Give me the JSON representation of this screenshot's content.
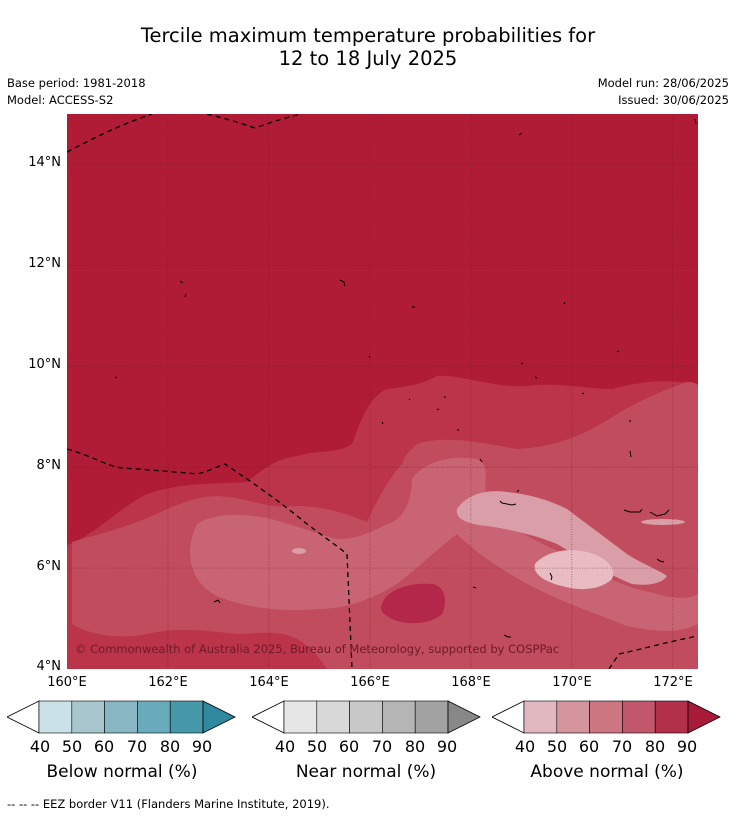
{
  "title": {
    "line1": "Tercile maximum temperature probabilities for",
    "line2": "12 to 18 July 2025"
  },
  "meta": {
    "base_period": "Base period: 1981-2018",
    "model": "Model: ACCESS-S2",
    "model_run": "Model run: 28/06/2025",
    "issued": "Issued: 30/06/2025"
  },
  "map": {
    "lon_range": [
      160,
      172.5
    ],
    "lat_range": [
      4,
      15
    ],
    "background_color": "#b01c36",
    "gridlines": true,
    "copyright": "© Commonwealth of Australia 2025, Bureau of Meteorology, supported by COSPPac",
    "y_ticks": [
      {
        "label": "4°N",
        "lat": 4
      },
      {
        "label": "6°N",
        "lat": 6
      },
      {
        "label": "8°N",
        "lat": 8
      },
      {
        "label": "10°N",
        "lat": 10
      },
      {
        "label": "12°N",
        "lat": 12
      },
      {
        "label": "14°N",
        "lat": 14
      }
    ],
    "x_ticks": [
      {
        "label": "160°E",
        "lon": 160
      },
      {
        "label": "162°E",
        "lon": 162
      },
      {
        "label": "164°E",
        "lon": 164
      },
      {
        "label": "166°E",
        "lon": 166
      },
      {
        "label": "168°E",
        "lon": 168
      },
      {
        "label": "170°E",
        "lon": 170
      },
      {
        "label": "172°E",
        "lon": 172
      }
    ]
  },
  "colorbars": [
    {
      "name": "below",
      "title": "Below normal (%)",
      "colors": [
        "#c9e1e7",
        "#a7c6cd",
        "#88b7c3",
        "#6aabbb",
        "#4798a8",
        "#2f8aa0"
      ],
      "labels": [
        "40",
        "50",
        "60",
        "70",
        "80",
        "90"
      ]
    },
    {
      "name": "near",
      "title": "Near normal (%)",
      "colors": [
        "#e6e6e6",
        "#d8d8d8",
        "#c8c8c8",
        "#b5b5b5",
        "#a2a2a2",
        "#888888"
      ],
      "labels": [
        "40",
        "50",
        "60",
        "70",
        "80",
        "90"
      ]
    },
    {
      "name": "above",
      "title": "Above normal (%)",
      "colors": [
        "#e2b8c0",
        "#d4959f",
        "#cc7681",
        "#c2566a",
        "#b3304a",
        "#a81a37"
      ],
      "labels": [
        "40",
        "50",
        "60",
        "70",
        "80",
        "90"
      ]
    }
  ],
  "footer": {
    "eez_legend": "--  --  -- EEZ border V11 (Flanders Marine Institute, 2019)."
  }
}
